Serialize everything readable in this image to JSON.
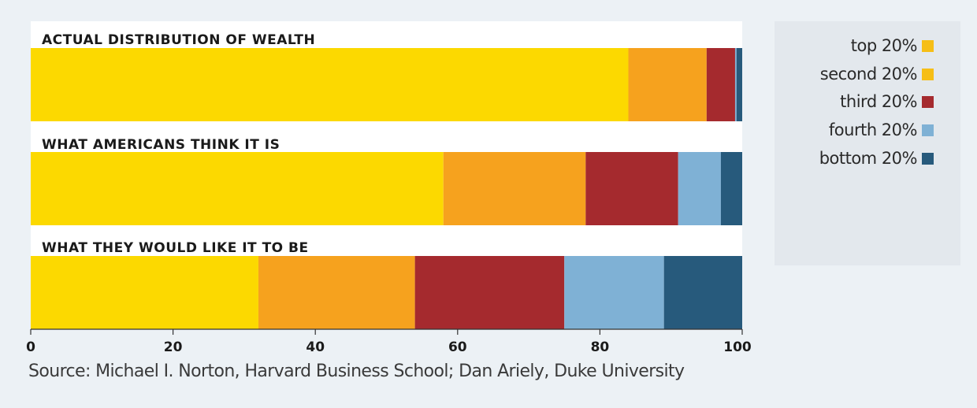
{
  "chart_data": {
    "type": "bar",
    "orientation": "horizontal",
    "stacked": true,
    "categories": [
      "ACTUAL DISTRIBUTION OF WEALTH",
      "WHAT AMERICANS THINK IT IS",
      "WHAT THEY WOULD LIKE IT TO BE"
    ],
    "series": [
      {
        "name": "top 20%",
        "color": "#fcd900",
        "values": [
          84,
          58,
          32
        ]
      },
      {
        "name": "second 20%",
        "color": "#f6a21e",
        "values": [
          11,
          20,
          22
        ]
      },
      {
        "name": "third 20%",
        "color": "#a52a2e",
        "values": [
          4,
          13,
          21
        ]
      },
      {
        "name": "fourth 20%",
        "color": "#7fb1d5",
        "values": [
          0.2,
          6,
          14
        ]
      },
      {
        "name": "bottom 20%",
        "color": "#275a7c",
        "values": [
          0.8,
          3,
          11
        ]
      }
    ],
    "xlim": [
      0,
      100
    ],
    "xticks": [
      "0",
      "20",
      "40",
      "60",
      "80",
      "100"
    ],
    "legend_position": "right",
    "grid": false
  },
  "source": "Source: Michael I. Norton, Harvard Business School; Dan Ariely, Duke University",
  "legend_swatch_colors": [
    "#f6be16",
    "#f6be16",
    "#a52a2e",
    "#7fb1d5",
    "#275a7c"
  ]
}
